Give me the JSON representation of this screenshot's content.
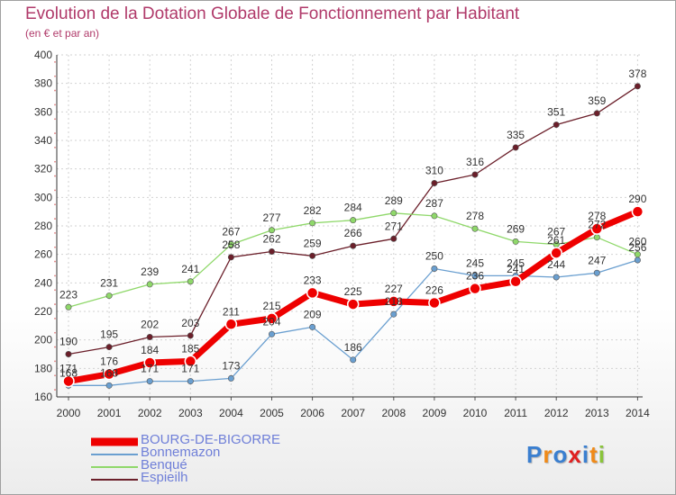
{
  "chart_data": {
    "type": "line",
    "title": "Evolution de la Dotation Globale de Fonctionnement par Habitant",
    "subtitle": "(en € et par an)",
    "xlabel": "",
    "ylabel": "",
    "x": [
      "2000",
      "2001",
      "2002",
      "2003",
      "2004",
      "2005",
      "2006",
      "2007",
      "2008",
      "2009",
      "2010",
      "2011",
      "2012",
      "2013",
      "2014"
    ],
    "ylim": [
      160,
      400
    ],
    "yticks": [
      "160",
      "180",
      "200",
      "220",
      "240",
      "260",
      "280",
      "300",
      "320",
      "340",
      "360",
      "380",
      "400"
    ],
    "grid": true,
    "legend_position": "bottom-left",
    "series": [
      {
        "name": "Espieilh",
        "color": "#6b1f2a",
        "values": [
          190,
          195,
          202,
          203,
          258,
          262,
          259,
          266,
          271,
          310,
          316,
          335,
          351,
          359,
          378
        ],
        "labels": [
          "190",
          "195",
          "202",
          "203",
          "258",
          "262",
          "259",
          "266",
          "271",
          "310",
          "316",
          "335",
          "351",
          "359",
          "378"
        ]
      },
      {
        "name": "Benqué",
        "color": "#8fd86a",
        "values": [
          223,
          231,
          239,
          241,
          267,
          277,
          282,
          284,
          289,
          287,
          278,
          269,
          267,
          272,
          260
        ],
        "labels": [
          "223",
          "231",
          "239",
          "241",
          "267",
          "277",
          "282",
          "284",
          "289",
          "287",
          "278",
          "269",
          "267",
          "272",
          "260"
        ]
      },
      {
        "name": "Bonnemazon",
        "color": "#6a9fd0",
        "values": [
          168,
          168,
          171,
          171,
          173,
          204,
          209,
          186,
          218,
          250,
          245,
          245,
          244,
          247,
          256
        ],
        "labels": [
          "168",
          "168",
          "171",
          "171",
          "173",
          "204",
          "209",
          "186",
          "218",
          "250",
          "245",
          "245",
          "244",
          "247",
          "256"
        ]
      },
      {
        "name": "BOURG-DE-BIGORRE",
        "color": "#ee0000",
        "values": [
          171,
          176,
          184,
          185,
          211,
          215,
          233,
          225,
          227,
          226,
          236,
          241,
          261,
          278,
          290
        ],
        "labels": [
          "171",
          "176",
          "184",
          "185",
          "211",
          "215",
          "233",
          "225",
          "227",
          "226",
          "236",
          "241",
          "261",
          "278",
          "290"
        ]
      }
    ],
    "legend": [
      {
        "name": "BOURG-DE-BIGORRE",
        "color": "#ee0000"
      },
      {
        "name": "Bonnemazon",
        "color": "#6a9fd0"
      },
      {
        "name": "Benqué",
        "color": "#8fd86a"
      },
      {
        "name": "Espieilh",
        "color": "#6b1f2a"
      }
    ]
  },
  "logo": {
    "letters": [
      "P",
      "r",
      "o",
      "x",
      "i",
      "t",
      "i"
    ],
    "colors": [
      "#3a7fd0",
      "#f08a18",
      "#3a7fd0",
      "#e02020",
      "#3a7fd0",
      "#f08a18",
      "#8ac43a"
    ]
  }
}
